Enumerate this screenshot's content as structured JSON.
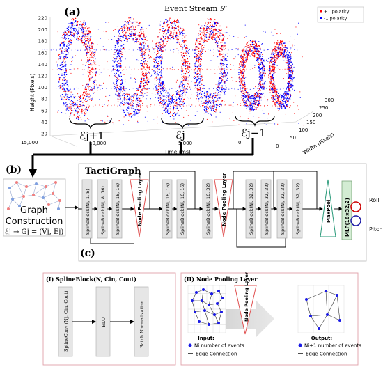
{
  "panel_a": {
    "label": "(a)",
    "title": "Event Stream 𝒮",
    "legend": {
      "pos_label": "+1 polarity",
      "neg_label": "-1 polarity",
      "pos_color": "#ff0000",
      "neg_color": "#0000ff"
    },
    "y_axis": {
      "label": "Height (Pixels)",
      "ticks": [
        "20",
        "40",
        "60",
        "80",
        "100",
        "120",
        "140",
        "160",
        "180",
        "200",
        "220"
      ]
    },
    "x_axis": {
      "label": "Time (ms)",
      "ticks": [
        "15,000",
        "10,000",
        "5,000",
        "0"
      ]
    },
    "z_axis": {
      "label": "Width (Pixels)",
      "ticks": [
        "0",
        "50",
        "100",
        "150",
        "200",
        "250",
        "300"
      ]
    },
    "brackets": [
      "ℰj+1",
      "ℰj",
      "ℰj−1"
    ]
  },
  "panel_b": {
    "label": "(b)",
    "graph_title_line1": "Graph",
    "graph_title_line2": "Construction",
    "formula": "ℰj → Gj = (Vj, Ej)"
  },
  "tactigraph": {
    "title": "TactiGraph",
    "blocks": [
      "SplineBlock(Nj, 1, 8)",
      "SplineBlock(Nj, 8, 16)",
      "SplineBlock(Nj, 16, 16)",
      "SplineBlock(Nj, 16, 16)",
      "SplineBlock(Nj, 16, 16)",
      "SplineBlock(Nj, 16, 32)",
      "SplineBlock(Nj, 32, 32)",
      "SplineBlock(Nj, 32, 32)",
      "SplineBlock(Nj, 32, 32)",
      "SplineBlock(Nj, 32, 32)"
    ],
    "pool_label": "Node Pooling Layer",
    "maxpool_label": "MaxPool",
    "mlp_label": "MLP(16×32,2)",
    "outputs": [
      "Roll",
      "Pitch"
    ],
    "output_colors": [
      "#cc0000",
      "#1a1aa6"
    ],
    "label_c": "(c)"
  },
  "spline_block_detail": {
    "title": "(I) SplineBlock(N, Cin, Cout)",
    "steps": [
      "SplineConv (Nj, Cin, Cout)",
      "ELU",
      "Batch Normalization"
    ]
  },
  "node_pool_detail": {
    "title": "(II) Node Pooling Layer",
    "pool_label": "Node Pooling Layer",
    "input_title": "Input:",
    "input_nodes": "Ni number of events",
    "input_edges": "Edge Connection",
    "output_title": "Output:",
    "output_nodes": "Ni+1 number of events",
    "output_edges": "Edge Connection"
  }
}
